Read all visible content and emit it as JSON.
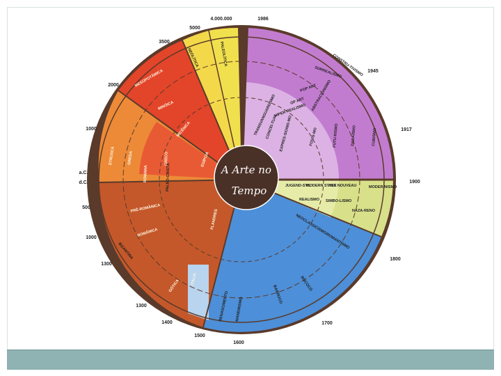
{
  "center": {
    "line1": "A Arte no",
    "line2": "Tempo"
  },
  "year_labels": {
    "y4000000": "4.000.000",
    "y1986": "1986",
    "y5000": "5000",
    "y3500": "3500",
    "y2000": "2000",
    "y1000bc": "1000",
    "ac": "a.C.",
    "dc": "d.C.",
    "y500": "500",
    "y1000ad": "1000",
    "y1300a": "1300",
    "y1300b": "1300",
    "y1400": "1400",
    "y1500": "1500",
    "y1600": "1600",
    "y1700": "1700",
    "y1800": "1800",
    "y1900": "1900",
    "y1917": "1917",
    "y1945": "1945"
  },
  "labels": {
    "paleolitica": "PALEOLÍTICA",
    "neolitica": "NEOLÍTICA",
    "mesopotamica": "MESOPOTÂMICA",
    "egipcia": "EGÍPCIA",
    "minoica": "MINÓICA",
    "micenica": "MICÊNICA",
    "etrusca": "ETRUSCA",
    "grega": "GREGA",
    "romana": "ROMANA",
    "greco": "GRECO",
    "paleo_crista": "PALEO-CRISTÃ",
    "pre_romanica": "PRÉ-ROMÂNICA",
    "romanica": "ROMÂNICA",
    "bizantina": "BIZANTINA",
    "gotica": "GÓTICA",
    "italia": "ITÁLIA",
    "flandres": "FLANDRES",
    "renascimento": "RENASCIMENTO",
    "maneirismo": "MANEIRISMO",
    "barroco": "BARROCO",
    "rococo": "ROCOCÓ",
    "neoclassicismo": "NEOCLASSICISMO/ROMANTISMO",
    "jugendstil": "JUGEND-STIL",
    "modern_style": "MODERN STYLE",
    "art_nouveau": "ART NOUVEAU",
    "modernismo": "MODER-NISMO",
    "realismo": "REALISMO",
    "simbolismo": "SIMBO-LISMO",
    "naza_reno": "NAZA-RENO",
    "expressionismo": "EXPRES-SIONIS-MO",
    "fovismo": "FOVIS-MO",
    "futurismo": "FUTU-RISMO",
    "dadaismo": "DADAÍSMO",
    "cubismo": "CUBISMO",
    "construtivismo": "CONSTRU-TIVISMO",
    "surrealismo": "SURREALISMO",
    "pop_art": "POP ART",
    "op_art": "OP ART",
    "hiper_realismo": "HIPER REALISMO",
    "transvanguardismo": "TRANSVANGUARDISMO",
    "abstracionismo": "ABSTRACIONISMO",
    "conceitual": "CONCEI-TUAL"
  },
  "colors": {
    "rim": "#5a3a2a",
    "prehistory": "#f3cf3b",
    "ancient": "#e2452a",
    "classical": "#ec8a38",
    "medieval": "#c4582a",
    "modern_early": "#4d8fd8",
    "nineteenth": "#d8e08a",
    "twentieth": "#c27ccf",
    "center": "#4a3128",
    "footer": "#8fb2b2"
  }
}
